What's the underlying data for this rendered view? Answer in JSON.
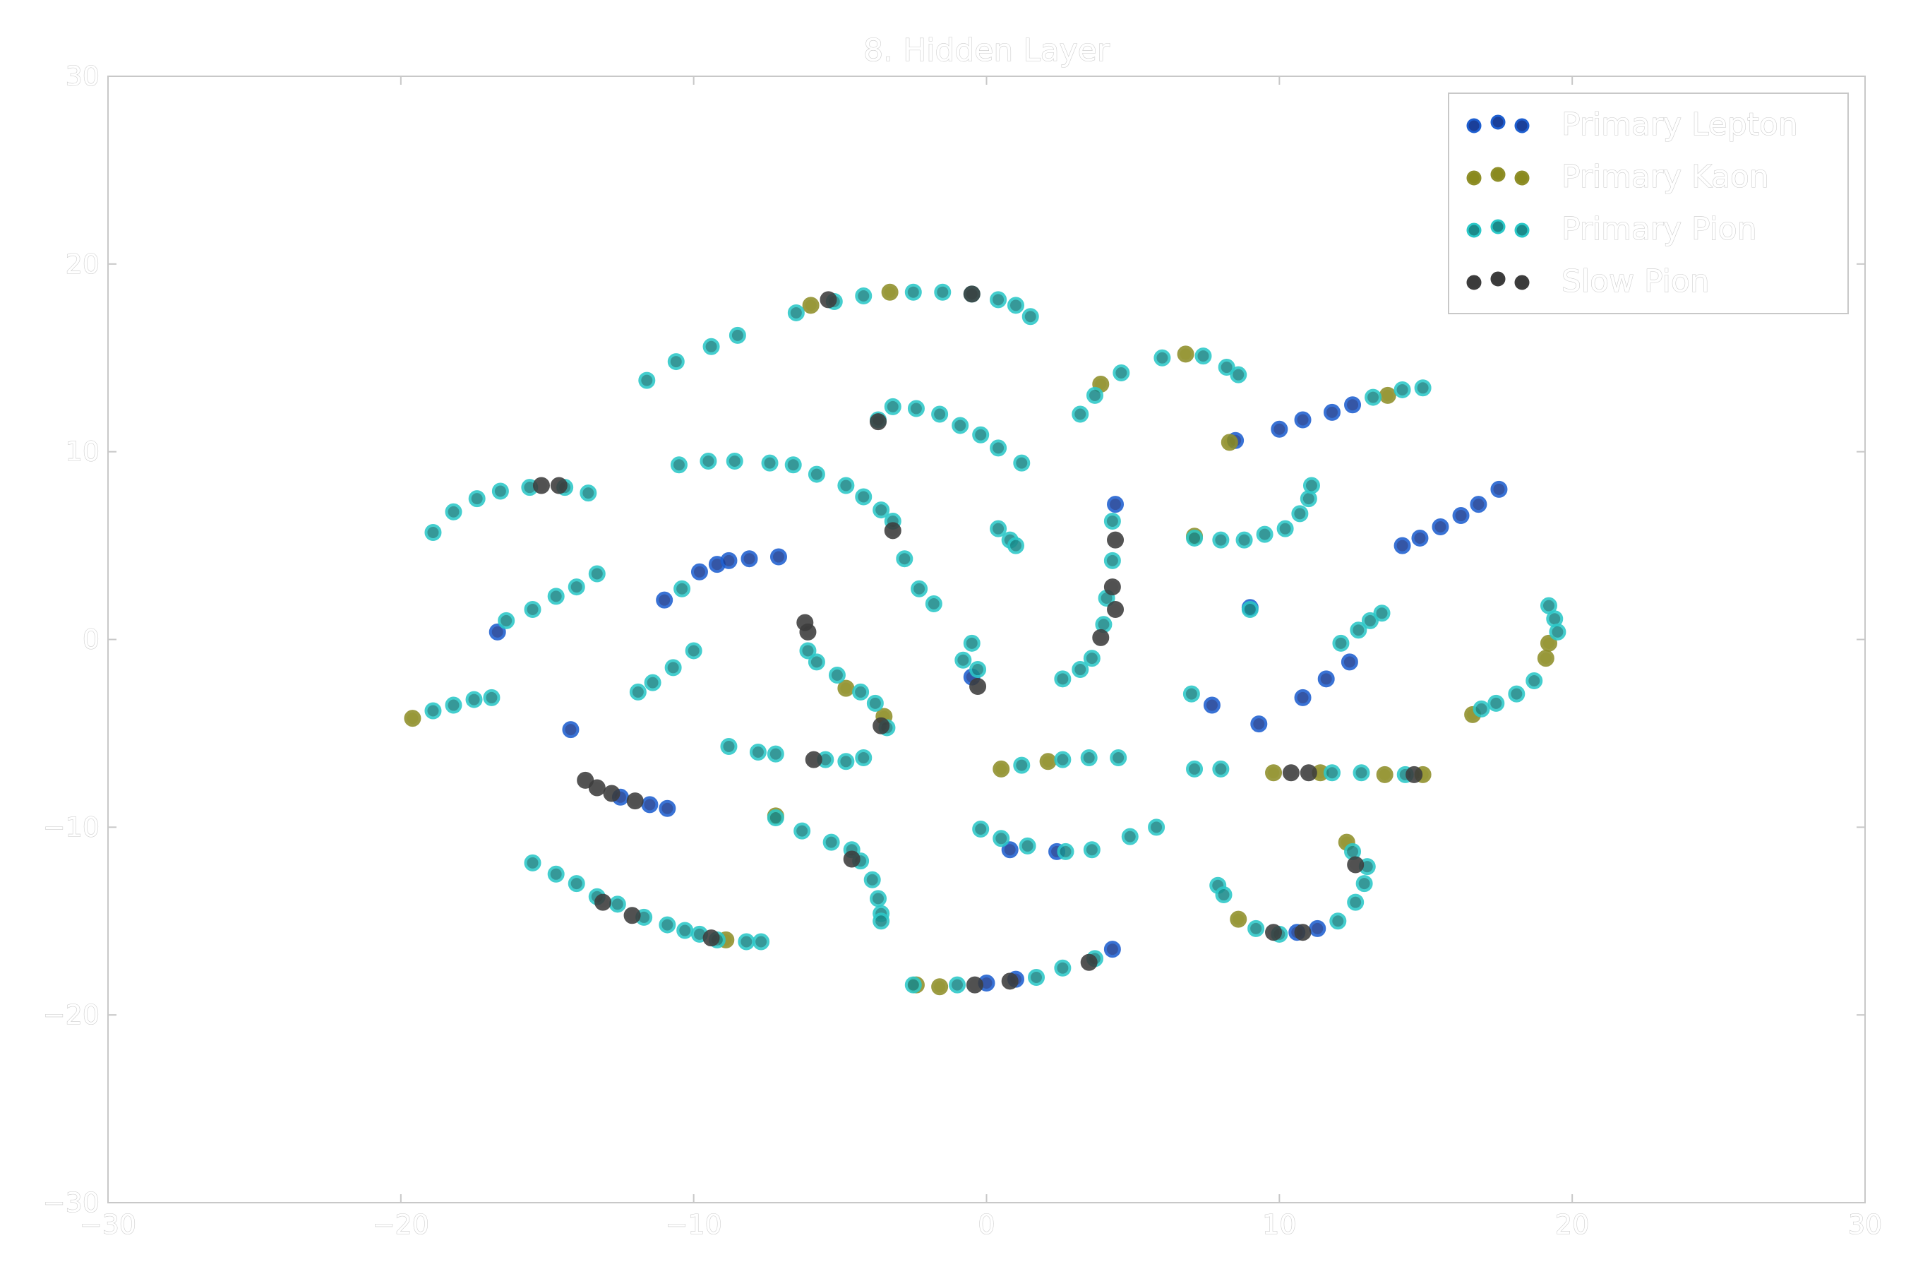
{
  "chart_data": {
    "type": "scatter",
    "title": "8. Hidden Layer",
    "xlabel": "",
    "ylabel": "",
    "xlim": [
      -30,
      30
    ],
    "ylim": [
      -30,
      30
    ],
    "xticks": [
      -30,
      -20,
      -10,
      0,
      10,
      20,
      30
    ],
    "yticks": [
      -30,
      -20,
      -10,
      0,
      10,
      20,
      30
    ],
    "x_tick_labels": [
      "−30",
      "−20",
      "−10",
      "0",
      "10",
      "20",
      "30"
    ],
    "y_tick_labels": [
      "−30",
      "−20",
      "−10",
      "0",
      "10",
      "20",
      "30"
    ],
    "grid": false,
    "legend_position": "top-right",
    "colors": {
      "background": "#ffffff",
      "axes": "#c8c8c8",
      "lepton": "#1a3f99",
      "kaon": "#8a8a1e",
      "pion": "#1b8a8a",
      "slow": "#3a3a3a"
    },
    "series": [
      {
        "name": "Primary Lepton",
        "color": "#1a3f99",
        "points": [
          [
            -16.7,
            0.4
          ],
          [
            -11.0,
            2.1
          ],
          [
            -9.8,
            3.6
          ],
          [
            -9.2,
            4.0
          ],
          [
            -8.8,
            4.2
          ],
          [
            -8.1,
            4.3
          ],
          [
            -7.1,
            4.4
          ],
          [
            4.4,
            7.2
          ],
          [
            8.5,
            10.6
          ],
          [
            10.0,
            11.2
          ],
          [
            10.8,
            11.7
          ],
          [
            11.8,
            12.1
          ],
          [
            12.5,
            12.5
          ],
          [
            14.2,
            5.0
          ],
          [
            14.8,
            5.4
          ],
          [
            15.5,
            6.0
          ],
          [
            16.2,
            6.6
          ],
          [
            16.8,
            7.2
          ],
          [
            17.5,
            8.0
          ],
          [
            9.3,
            -4.5
          ],
          [
            10.8,
            -3.1
          ],
          [
            11.6,
            -2.1
          ],
          [
            12.4,
            -1.2
          ],
          [
            -14.2,
            -4.8
          ],
          [
            -12.5,
            -8.4
          ],
          [
            -11.5,
            -8.8
          ],
          [
            -10.9,
            -9.0
          ],
          [
            0.8,
            -11.2
          ],
          [
            2.4,
            -11.3
          ],
          [
            11.3,
            -15.4
          ],
          [
            10.6,
            -15.6
          ],
          [
            4.3,
            -16.5
          ],
          [
            7.7,
            -3.5
          ],
          [
            9.0,
            1.7
          ],
          [
            -0.5,
            -2.0
          ],
          [
            1.0,
            -18.1
          ],
          [
            0.0,
            -18.3
          ]
        ]
      },
      {
        "name": "Primary Kaon",
        "color": "#8a8a1e",
        "points": [
          [
            -19.6,
            -4.2
          ],
          [
            -6.0,
            17.8
          ],
          [
            -3.3,
            18.5
          ],
          [
            3.9,
            13.6
          ],
          [
            6.8,
            15.2
          ],
          [
            8.3,
            10.5
          ],
          [
            7.1,
            5.5
          ],
          [
            13.7,
            13.0
          ],
          [
            19.2,
            -0.2
          ],
          [
            16.6,
            -4.0
          ],
          [
            19.1,
            -1.0
          ],
          [
            12.3,
            -10.8
          ],
          [
            -7.2,
            -9.4
          ],
          [
            -8.9,
            -16.0
          ],
          [
            -4.8,
            -2.6
          ],
          [
            -3.5,
            -4.1
          ],
          [
            0.5,
            -6.9
          ],
          [
            2.1,
            -6.5
          ],
          [
            9.8,
            -7.1
          ],
          [
            11.4,
            -7.1
          ],
          [
            13.6,
            -7.2
          ],
          [
            14.9,
            -7.2
          ],
          [
            -2.4,
            -18.4
          ],
          [
            -1.6,
            -18.5
          ],
          [
            8.6,
            -14.9
          ]
        ]
      },
      {
        "name": "Primary Pion",
        "color": "#1b8a8a",
        "points": [
          [
            -11.6,
            13.8
          ],
          [
            -10.6,
            14.8
          ],
          [
            -9.4,
            15.6
          ],
          [
            -8.5,
            16.2
          ],
          [
            -6.5,
            17.4
          ],
          [
            -5.2,
            18.0
          ],
          [
            -4.2,
            18.3
          ],
          [
            -2.5,
            18.5
          ],
          [
            -1.5,
            18.5
          ],
          [
            -0.5,
            18.4
          ],
          [
            0.4,
            18.1
          ],
          [
            1.0,
            17.8
          ],
          [
            1.5,
            17.2
          ],
          [
            3.2,
            12.0
          ],
          [
            3.7,
            13.0
          ],
          [
            4.6,
            14.2
          ],
          [
            6.0,
            15.0
          ],
          [
            7.4,
            15.1
          ],
          [
            8.2,
            14.5
          ],
          [
            8.6,
            14.1
          ],
          [
            14.9,
            13.4
          ],
          [
            14.2,
            13.3
          ],
          [
            13.2,
            12.9
          ],
          [
            -3.7,
            11.7
          ],
          [
            -3.2,
            12.4
          ],
          [
            -2.4,
            12.3
          ],
          [
            -1.6,
            12.0
          ],
          [
            -0.9,
            11.4
          ],
          [
            -0.2,
            10.9
          ],
          [
            0.4,
            10.2
          ],
          [
            1.2,
            9.4
          ],
          [
            -18.9,
            5.7
          ],
          [
            -18.2,
            6.8
          ],
          [
            -17.4,
            7.5
          ],
          [
            -16.6,
            7.9
          ],
          [
            -15.6,
            8.1
          ],
          [
            -14.4,
            8.1
          ],
          [
            -13.6,
            7.8
          ],
          [
            -10.5,
            9.3
          ],
          [
            -9.5,
            9.5
          ],
          [
            -8.6,
            9.5
          ],
          [
            -7.4,
            9.4
          ],
          [
            -6.6,
            9.3
          ],
          [
            -5.8,
            8.8
          ],
          [
            -4.8,
            8.2
          ],
          [
            -4.2,
            7.6
          ],
          [
            -3.6,
            6.9
          ],
          [
            -3.2,
            6.3
          ],
          [
            -2.8,
            4.3
          ],
          [
            -2.3,
            2.7
          ],
          [
            -1.8,
            1.9
          ],
          [
            0.4,
            5.9
          ],
          [
            0.8,
            5.3
          ],
          [
            1.0,
            5.0
          ],
          [
            -16.4,
            1.0
          ],
          [
            -15.5,
            1.6
          ],
          [
            -14.7,
            2.3
          ],
          [
            -14.0,
            2.8
          ],
          [
            -13.3,
            3.5
          ],
          [
            -10.4,
            2.7
          ],
          [
            -11.9,
            -2.8
          ],
          [
            -11.4,
            -2.3
          ],
          [
            -10.7,
            -1.5
          ],
          [
            -10.0,
            -0.6
          ],
          [
            -18.9,
            -3.8
          ],
          [
            -18.2,
            -3.5
          ],
          [
            -17.5,
            -3.2
          ],
          [
            -16.9,
            -3.1
          ],
          [
            -6.1,
            -0.6
          ],
          [
            -5.8,
            -1.2
          ],
          [
            -5.1,
            -1.9
          ],
          [
            -4.3,
            -2.8
          ],
          [
            -3.8,
            -3.4
          ],
          [
            -3.4,
            -4.7
          ],
          [
            -8.8,
            -5.7
          ],
          [
            -7.8,
            -6.0
          ],
          [
            -7.2,
            -6.1
          ],
          [
            -5.5,
            -6.4
          ],
          [
            -4.8,
            -6.5
          ],
          [
            -4.2,
            -6.3
          ],
          [
            1.2,
            -6.7
          ],
          [
            2.6,
            -6.4
          ],
          [
            3.5,
            -6.3
          ],
          [
            4.5,
            -6.3
          ],
          [
            2.6,
            -2.1
          ],
          [
            3.2,
            -1.6
          ],
          [
            3.6,
            -1.0
          ],
          [
            4.0,
            0.8
          ],
          [
            4.1,
            2.2
          ],
          [
            4.3,
            4.2
          ],
          [
            4.3,
            6.3
          ],
          [
            7.0,
            -2.9
          ],
          [
            9.0,
            1.6
          ],
          [
            7.1,
            5.4
          ],
          [
            8.0,
            5.3
          ],
          [
            8.8,
            5.3
          ],
          [
            9.5,
            5.6
          ],
          [
            10.2,
            5.9
          ],
          [
            10.7,
            6.7
          ],
          [
            11.0,
            7.5
          ],
          [
            11.1,
            8.2
          ],
          [
            12.1,
            -0.2
          ],
          [
            12.7,
            0.5
          ],
          [
            13.1,
            1.0
          ],
          [
            13.5,
            1.4
          ],
          [
            19.2,
            1.8
          ],
          [
            19.4,
            1.1
          ],
          [
            19.5,
            0.4
          ],
          [
            18.7,
            -2.2
          ],
          [
            18.1,
            -2.9
          ],
          [
            17.4,
            -3.4
          ],
          [
            16.9,
            -3.7
          ],
          [
            7.1,
            -6.9
          ],
          [
            8.0,
            -6.9
          ],
          [
            11.8,
            -7.1
          ],
          [
            12.8,
            -7.1
          ],
          [
            14.3,
            -7.2
          ],
          [
            -0.2,
            -10.1
          ],
          [
            0.5,
            -10.6
          ],
          [
            1.4,
            -11.0
          ],
          [
            2.7,
            -11.3
          ],
          [
            3.6,
            -11.2
          ],
          [
            4.9,
            -10.5
          ],
          [
            5.8,
            -10.0
          ],
          [
            -7.2,
            -9.5
          ],
          [
            -6.3,
            -10.2
          ],
          [
            -5.3,
            -10.8
          ],
          [
            -4.6,
            -11.2
          ],
          [
            -4.3,
            -11.8
          ],
          [
            -3.9,
            -12.8
          ],
          [
            -3.7,
            -13.8
          ],
          [
            -3.6,
            -14.6
          ],
          [
            -3.6,
            -15.0
          ],
          [
            -15.5,
            -11.9
          ],
          [
            -14.7,
            -12.5
          ],
          [
            -14.0,
            -13.0
          ],
          [
            -13.3,
            -13.7
          ],
          [
            -12.6,
            -14.1
          ],
          [
            -11.7,
            -14.8
          ],
          [
            -10.9,
            -15.2
          ],
          [
            -10.3,
            -15.5
          ],
          [
            -9.8,
            -15.7
          ],
          [
            -9.2,
            -16.0
          ],
          [
            -8.2,
            -16.1
          ],
          [
            -7.7,
            -16.1
          ],
          [
            -2.5,
            -18.4
          ],
          [
            -1.0,
            -18.4
          ],
          [
            1.7,
            -18.0
          ],
          [
            2.6,
            -17.5
          ],
          [
            3.7,
            -17.0
          ],
          [
            7.9,
            -13.1
          ],
          [
            8.1,
            -13.6
          ],
          [
            9.2,
            -15.4
          ],
          [
            10.0,
            -15.7
          ],
          [
            12.0,
            -15.0
          ],
          [
            12.6,
            -14.0
          ],
          [
            12.9,
            -13.0
          ],
          [
            13.0,
            -12.1
          ],
          [
            12.5,
            -11.3
          ],
          [
            -0.8,
            -1.1
          ],
          [
            -0.5,
            -0.2
          ],
          [
            -0.3,
            -1.6
          ]
        ]
      },
      {
        "name": "Slow Pion",
        "color": "#3a3a3a",
        "points": [
          [
            -15.2,
            8.2
          ],
          [
            -14.6,
            8.2
          ],
          [
            -3.2,
            5.8
          ],
          [
            -3.7,
            11.6
          ],
          [
            -5.4,
            18.1
          ],
          [
            -0.5,
            18.4
          ],
          [
            4.4,
            5.3
          ],
          [
            4.3,
            2.8
          ],
          [
            4.4,
            1.6
          ],
          [
            3.9,
            0.1
          ],
          [
            -6.2,
            0.9
          ],
          [
            -6.1,
            0.4
          ],
          [
            -13.7,
            -7.5
          ],
          [
            -13.3,
            -7.9
          ],
          [
            -12.8,
            -8.2
          ],
          [
            -12.0,
            -8.6
          ],
          [
            -5.9,
            -6.4
          ],
          [
            -4.6,
            -11.7
          ],
          [
            -13.1,
            -14.0
          ],
          [
            -12.1,
            -14.7
          ],
          [
            -9.4,
            -15.9
          ],
          [
            -0.4,
            -18.4
          ],
          [
            0.8,
            -18.2
          ],
          [
            3.5,
            -17.2
          ],
          [
            10.4,
            -7.1
          ],
          [
            11.0,
            -7.1
          ],
          [
            12.6,
            -12.0
          ],
          [
            9.8,
            -15.6
          ],
          [
            10.8,
            -15.6
          ],
          [
            -0.3,
            -2.5
          ],
          [
            14.6,
            -7.2
          ],
          [
            -3.6,
            -4.6
          ]
        ]
      }
    ]
  }
}
